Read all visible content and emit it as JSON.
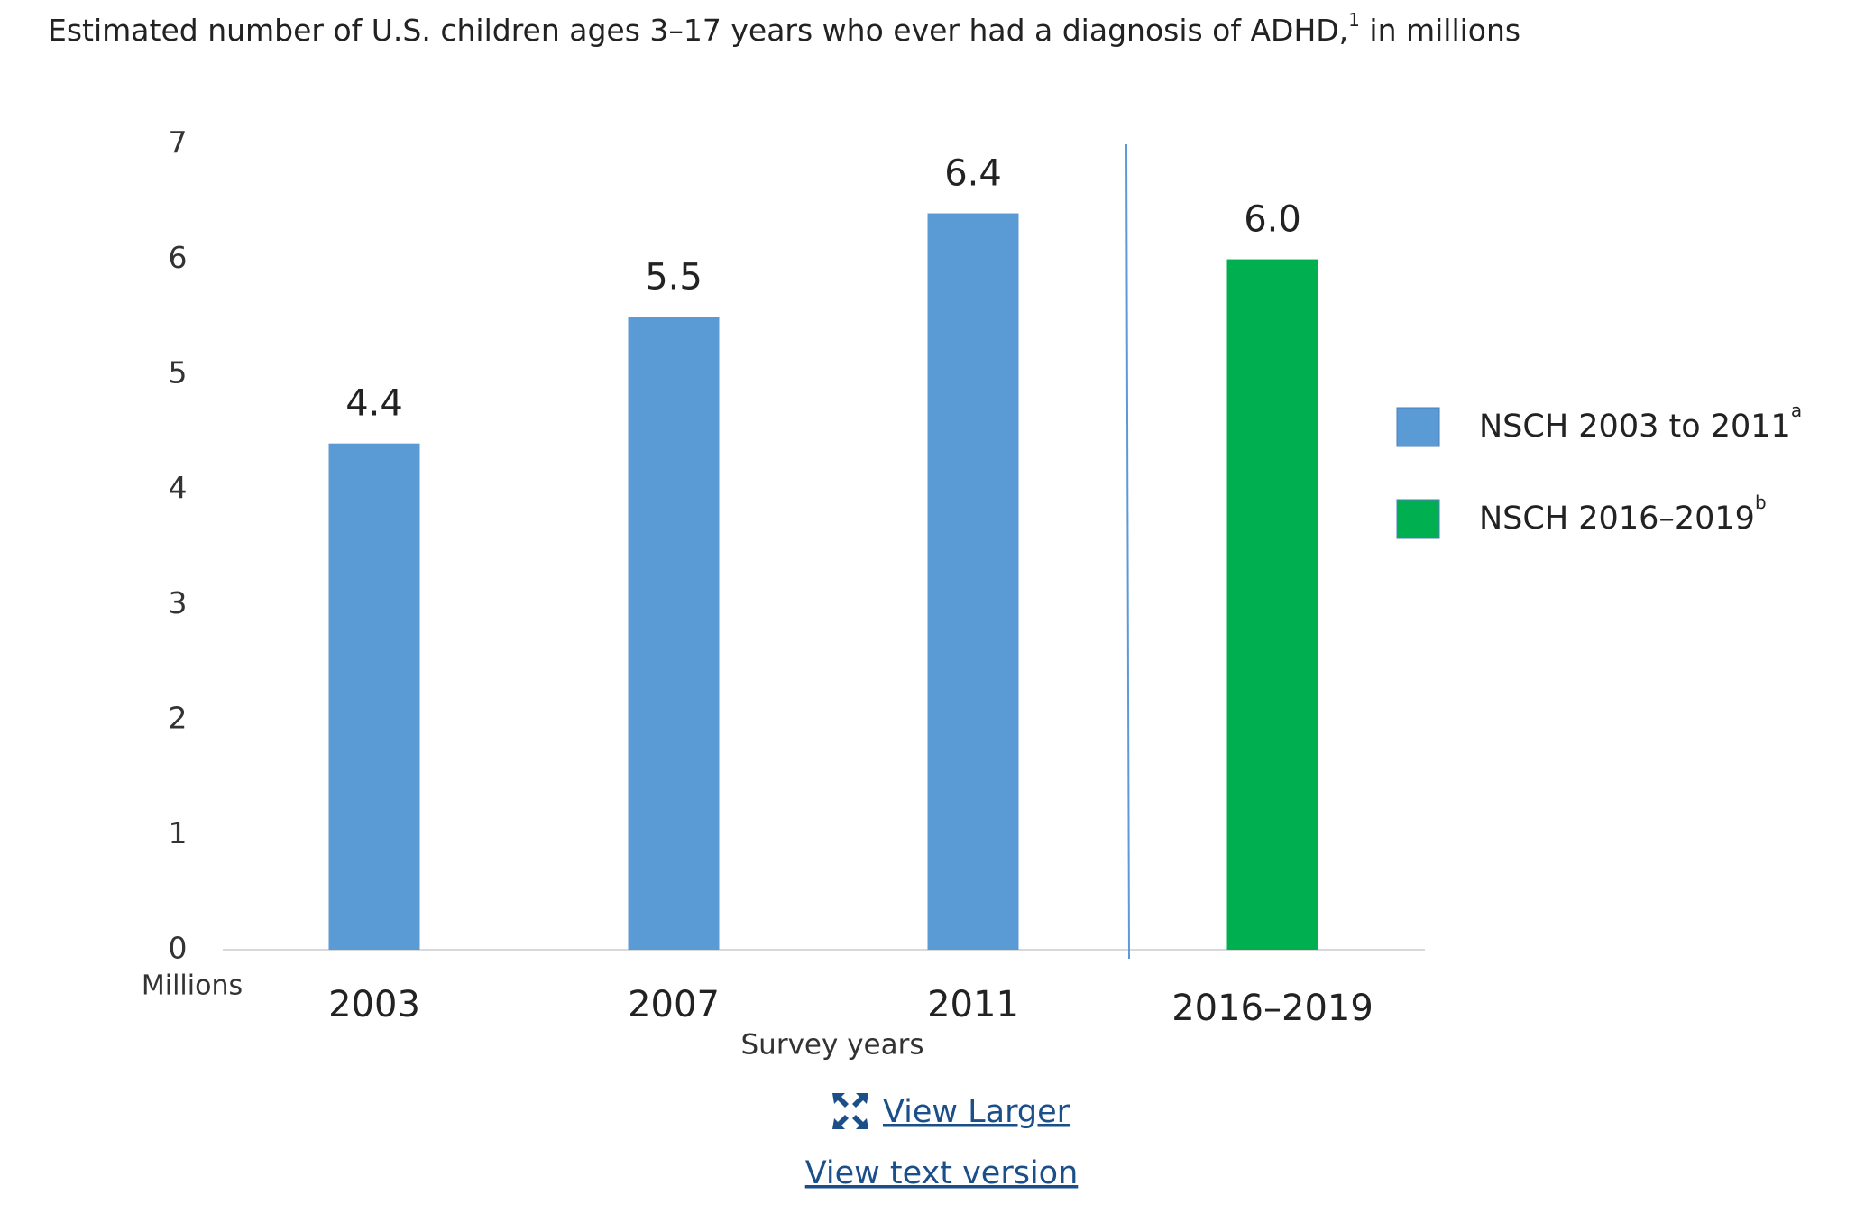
{
  "chart_data": {
    "type": "bar",
    "title": "Estimated number of U.S. children ages 3–17 years who ever had a diagnosis of ADHD,",
    "title_footnote": "1",
    "title_suffix": " in millions",
    "y_label": "Millions",
    "x_label": "Survey years",
    "categories": [
      "2003",
      "2007",
      "2011",
      "2016–2019"
    ],
    "series": [
      {
        "name": "NSCH 2003 to 2011",
        "footnote": "a",
        "color": "#5b9bd5",
        "values": [
          4.4,
          5.5,
          6.4,
          null
        ],
        "value_labels": [
          "4.4",
          "5.5",
          "6.4",
          null
        ]
      },
      {
        "name": "NSCH 2016–2019",
        "footnote": "b",
        "color": "#00b050",
        "values": [
          null,
          null,
          null,
          6.0
        ],
        "value_labels": [
          null,
          null,
          null,
          "6.0"
        ]
      }
    ],
    "ylim": [
      0,
      7
    ],
    "yticks": [
      0,
      1,
      2,
      3,
      4,
      5,
      6,
      7
    ],
    "grid": false,
    "legend": "right"
  },
  "links": [
    "View Larger",
    "View text version"
  ]
}
